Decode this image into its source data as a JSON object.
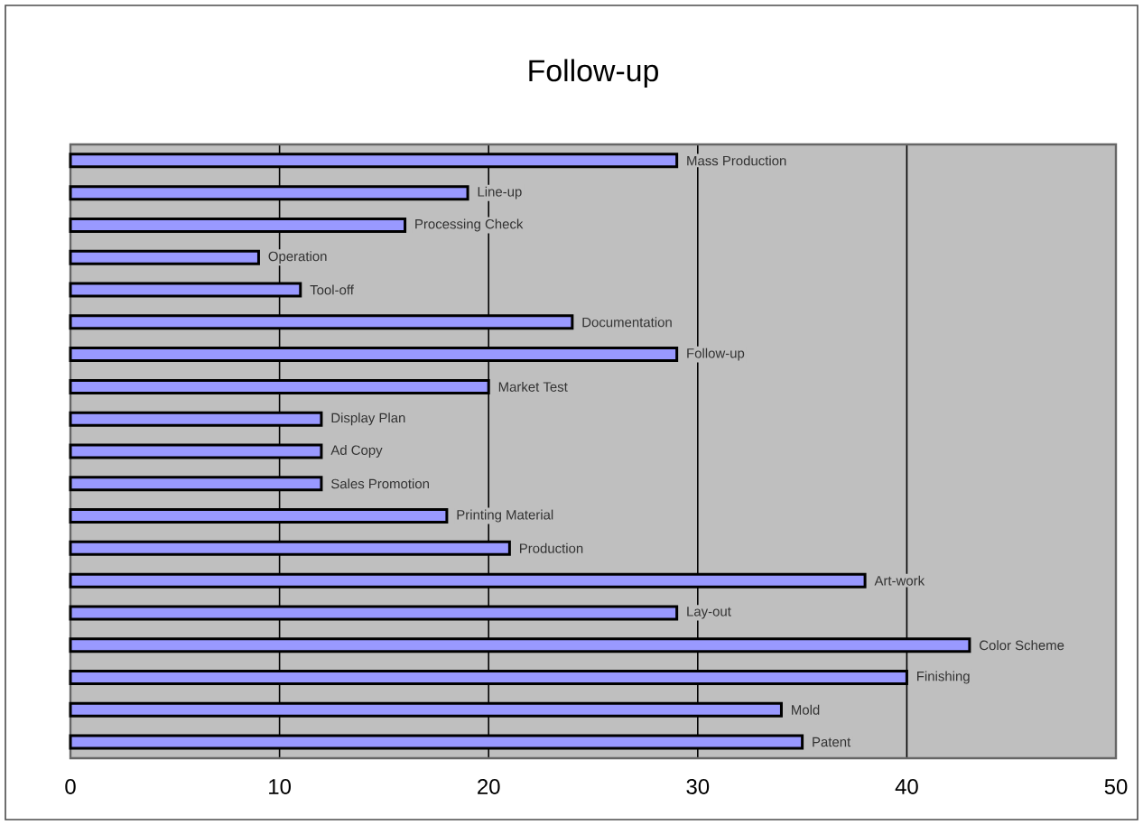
{
  "chart_data": {
    "type": "bar",
    "orientation": "horizontal",
    "title": "Follow-up",
    "categories": [
      "Mass Production",
      "Line-up",
      "Processing Check",
      "Operation",
      "Tool-off",
      "Documentation",
      "Follow-up",
      "Market Test",
      "Display Plan",
      "Ad Copy",
      "Sales Promotion",
      "Printing Material",
      "Production",
      "Art-work",
      "Lay-out",
      "Color Scheme",
      "Finishing",
      "Mold",
      "Patent"
    ],
    "values": [
      29,
      19,
      16,
      9,
      11,
      24,
      29,
      20,
      12,
      12,
      12,
      18,
      21,
      38,
      29,
      43,
      40,
      34,
      35
    ],
    "color": "#9999ff",
    "xlim": [
      0,
      50
    ],
    "xticks": [
      0,
      10,
      20,
      30,
      40,
      50
    ],
    "grid": "x"
  }
}
